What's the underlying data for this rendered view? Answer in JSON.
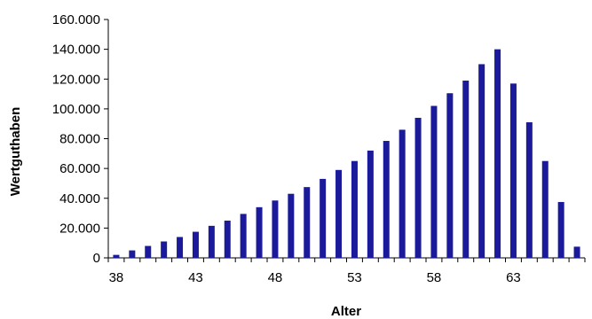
{
  "chart_data": {
    "type": "bar",
    "xlabel": "Alter",
    "ylabel": "Wertguthaben",
    "ylim": [
      0,
      160000
    ],
    "y_ticks": [
      0,
      20000,
      40000,
      60000,
      80000,
      100000,
      120000,
      140000,
      160000
    ],
    "y_tick_labels": [
      "0",
      "20.000",
      "40.000",
      "60.000",
      "80.000",
      "100.000",
      "120.000",
      "140.000",
      "160.000"
    ],
    "x_tick_labels": [
      "38",
      "43",
      "48",
      "53",
      "58",
      "63"
    ],
    "categories": [
      38,
      39,
      40,
      41,
      42,
      43,
      44,
      45,
      46,
      47,
      48,
      49,
      50,
      51,
      52,
      53,
      54,
      55,
      56,
      57,
      58,
      59,
      60,
      61,
      62,
      63,
      64,
      65,
      66,
      67
    ],
    "values": [
      2000,
      5000,
      8000,
      11000,
      14000,
      17500,
      21500,
      25000,
      29500,
      34000,
      38500,
      43000,
      47500,
      53000,
      59000,
      65000,
      72000,
      78500,
      86000,
      94000,
      102000,
      110500,
      119000,
      130000,
      140000,
      117000,
      91000,
      65000,
      37500,
      7500
    ],
    "bar_color": "#1a1a9a",
    "grid": false,
    "legend": "none"
  }
}
